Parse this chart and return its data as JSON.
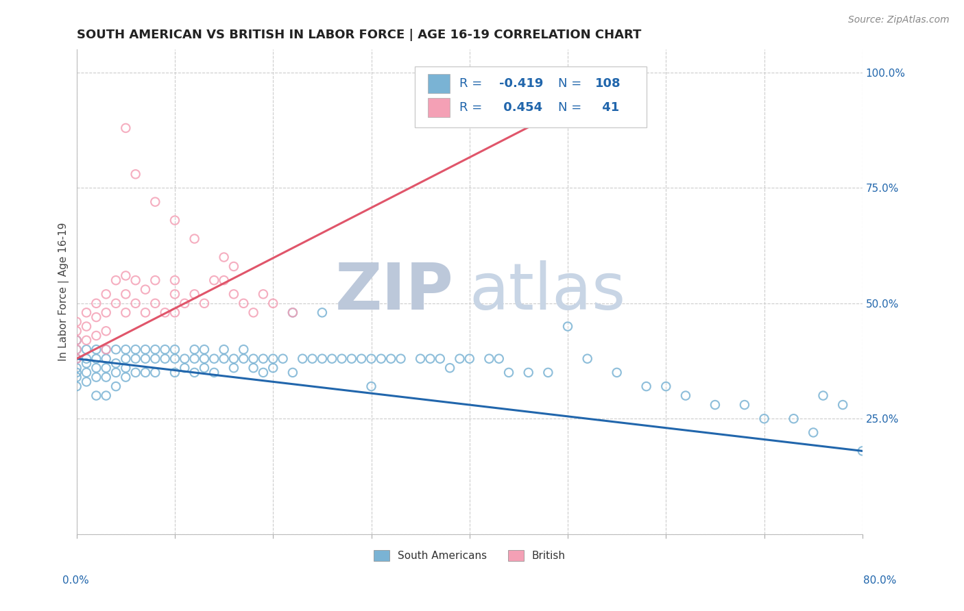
{
  "title": "SOUTH AMERICAN VS BRITISH IN LABOR FORCE | AGE 16-19 CORRELATION CHART",
  "source": "Source: ZipAtlas.com",
  "ylabel": "In Labor Force | Age 16-19",
  "xlim": [
    0.0,
    0.8
  ],
  "ylim": [
    0.0,
    1.05
  ],
  "blue_color": "#7ab3d4",
  "pink_color": "#f4a0b5",
  "blue_line_color": "#2166ac",
  "pink_line_color": "#e0556a",
  "legend_text_color": "#2166ac",
  "watermark_color": "#cdd8e8",
  "title_fontsize": 13,
  "axis_label_fontsize": 11,
  "tick_fontsize": 11,
  "legend_fontsize": 13,
  "source_fontsize": 10,
  "blue_x": [
    0.0,
    0.0,
    0.0,
    0.0,
    0.0,
    0.0,
    0.0,
    0.0,
    0.01,
    0.01,
    0.01,
    0.01,
    0.01,
    0.02,
    0.02,
    0.02,
    0.02,
    0.02,
    0.03,
    0.03,
    0.03,
    0.03,
    0.03,
    0.04,
    0.04,
    0.04,
    0.04,
    0.05,
    0.05,
    0.05,
    0.05,
    0.06,
    0.06,
    0.06,
    0.07,
    0.07,
    0.07,
    0.08,
    0.08,
    0.08,
    0.09,
    0.09,
    0.1,
    0.1,
    0.1,
    0.11,
    0.11,
    0.12,
    0.12,
    0.12,
    0.13,
    0.13,
    0.13,
    0.14,
    0.14,
    0.15,
    0.15,
    0.16,
    0.16,
    0.17,
    0.17,
    0.18,
    0.18,
    0.19,
    0.19,
    0.2,
    0.2,
    0.21,
    0.22,
    0.22,
    0.23,
    0.24,
    0.25,
    0.25,
    0.26,
    0.27,
    0.28,
    0.29,
    0.3,
    0.3,
    0.31,
    0.32,
    0.33,
    0.35,
    0.36,
    0.37,
    0.38,
    0.39,
    0.4,
    0.42,
    0.43,
    0.44,
    0.46,
    0.48,
    0.5,
    0.52,
    0.55,
    0.58,
    0.6,
    0.62,
    0.65,
    0.68,
    0.7,
    0.73,
    0.75,
    0.76,
    0.78,
    0.8
  ],
  "blue_y": [
    0.38,
    0.36,
    0.4,
    0.34,
    0.32,
    0.38,
    0.35,
    0.42,
    0.37,
    0.35,
    0.4,
    0.38,
    0.33,
    0.36,
    0.4,
    0.38,
    0.34,
    0.3,
    0.38,
    0.4,
    0.36,
    0.34,
    0.3,
    0.37,
    0.4,
    0.35,
    0.32,
    0.38,
    0.4,
    0.36,
    0.34,
    0.38,
    0.4,
    0.35,
    0.38,
    0.4,
    0.35,
    0.38,
    0.4,
    0.35,
    0.38,
    0.4,
    0.38,
    0.4,
    0.35,
    0.38,
    0.36,
    0.38,
    0.4,
    0.35,
    0.38,
    0.4,
    0.36,
    0.38,
    0.35,
    0.38,
    0.4,
    0.38,
    0.36,
    0.38,
    0.4,
    0.38,
    0.36,
    0.38,
    0.35,
    0.38,
    0.36,
    0.38,
    0.48,
    0.35,
    0.38,
    0.38,
    0.48,
    0.38,
    0.38,
    0.38,
    0.38,
    0.38,
    0.38,
    0.32,
    0.38,
    0.38,
    0.38,
    0.38,
    0.38,
    0.38,
    0.36,
    0.38,
    0.38,
    0.38,
    0.38,
    0.35,
    0.35,
    0.35,
    0.45,
    0.38,
    0.35,
    0.32,
    0.32,
    0.3,
    0.28,
    0.28,
    0.25,
    0.25,
    0.22,
    0.3,
    0.28,
    0.18
  ],
  "pink_x": [
    0.0,
    0.0,
    0.0,
    0.0,
    0.0,
    0.01,
    0.01,
    0.01,
    0.02,
    0.02,
    0.02,
    0.03,
    0.03,
    0.03,
    0.03,
    0.04,
    0.04,
    0.05,
    0.05,
    0.05,
    0.06,
    0.06,
    0.07,
    0.07,
    0.08,
    0.08,
    0.09,
    0.1,
    0.1,
    0.1,
    0.11,
    0.12,
    0.13,
    0.14,
    0.15,
    0.16,
    0.17,
    0.18,
    0.19,
    0.2,
    0.22
  ],
  "pink_y": [
    0.38,
    0.42,
    0.4,
    0.44,
    0.46,
    0.42,
    0.45,
    0.48,
    0.5,
    0.47,
    0.43,
    0.52,
    0.48,
    0.44,
    0.4,
    0.55,
    0.5,
    0.52,
    0.48,
    0.56,
    0.5,
    0.55,
    0.53,
    0.48,
    0.5,
    0.55,
    0.48,
    0.52,
    0.48,
    0.55,
    0.5,
    0.52,
    0.5,
    0.55,
    0.55,
    0.52,
    0.5,
    0.48,
    0.52,
    0.5,
    0.48
  ],
  "pink_outliers_x": [
    0.05,
    0.06,
    0.08,
    0.1,
    0.12,
    0.15,
    0.16
  ],
  "pink_outliers_y": [
    0.88,
    0.78,
    0.72,
    0.68,
    0.64,
    0.6,
    0.58
  ],
  "blue_line_x0": 0.0,
  "blue_line_x1": 0.8,
  "blue_line_y0": 0.38,
  "blue_line_y1": 0.18,
  "pink_line_x0": 0.0,
  "pink_line_x1": 0.55,
  "pink_line_y0": 0.38,
  "pink_line_y1": 0.98
}
